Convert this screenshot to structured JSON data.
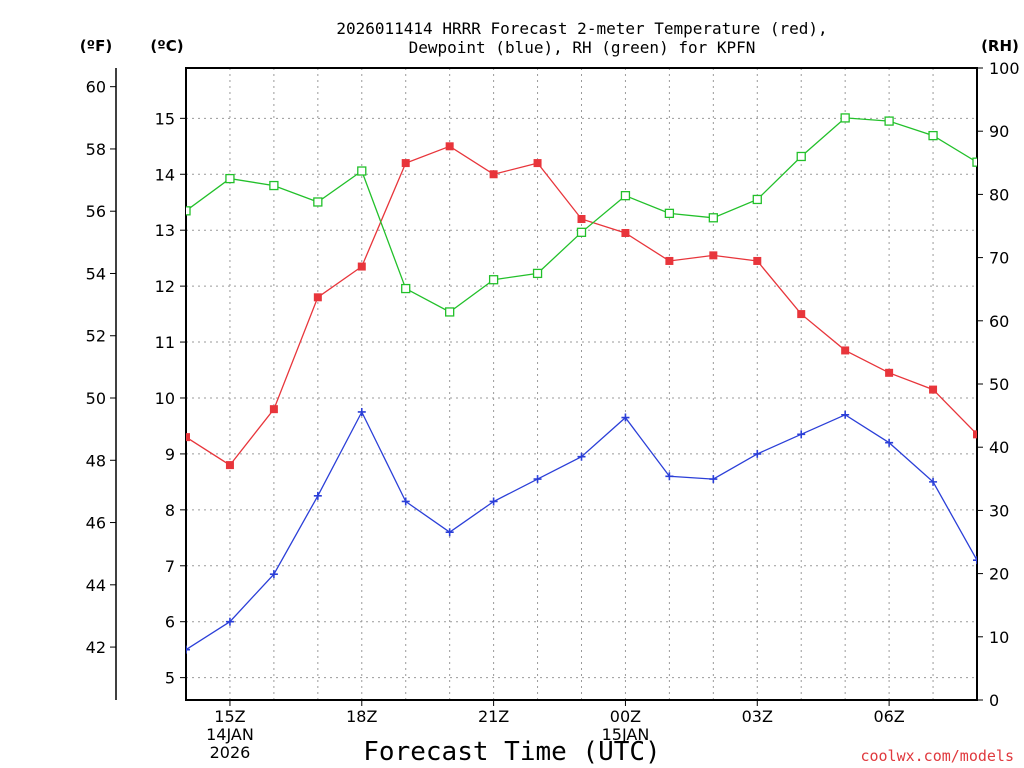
{
  "chart_data": {
    "type": "line",
    "title_line1": "2026011414 HRRR Forecast 2-meter Temperature (red),",
    "title_line2": "Dewpoint (blue), RH (green) for KPFN",
    "xlabel": "Forecast Time (UTC)",
    "credit": "coolwx.com/models",
    "units": {
      "fahrenheit": "(ºF)",
      "celsius": "(ºC)",
      "rh": "(RH)"
    },
    "x_hours": [
      14,
      15,
      16,
      17,
      18,
      19,
      20,
      21,
      22,
      23,
      24,
      25,
      26,
      27,
      28,
      29,
      30,
      31,
      32
    ],
    "xlim": [
      14,
      32
    ],
    "x_ticks": [
      {
        "hour": 15,
        "lines": [
          "15Z",
          "14JAN",
          "2026"
        ]
      },
      {
        "hour": 18,
        "lines": [
          "18Z"
        ]
      },
      {
        "hour": 21,
        "lines": [
          "21Z"
        ]
      },
      {
        "hour": 24,
        "lines": [
          "00Z",
          "15JAN"
        ]
      },
      {
        "hour": 27,
        "lines": [
          "03Z"
        ]
      },
      {
        "hour": 30,
        "lines": [
          "06Z"
        ]
      }
    ],
    "celsius_axis": {
      "range": [
        4.6,
        15.9
      ],
      "ticks": [
        "5",
        "6",
        "7",
        "8",
        "9",
        "10",
        "11",
        "12",
        "13",
        "14",
        "15"
      ]
    },
    "fahrenheit_axis": {
      "range": [
        40.3,
        60.6
      ],
      "ticks": [
        "42",
        "44",
        "46",
        "48",
        "50",
        "52",
        "54",
        "56",
        "58",
        "60"
      ]
    },
    "rh_axis": {
      "range": [
        0,
        100
      ],
      "ticks": [
        "0",
        "10",
        "20",
        "30",
        "40",
        "50",
        "60",
        "70",
        "80",
        "90",
        "100"
      ]
    },
    "series": [
      {
        "name": "Temperature",
        "axis": "celsius",
        "color": "#e8353b",
        "marker": "filled-square",
        "values": [
          9.3,
          8.8,
          9.8,
          11.8,
          12.35,
          14.2,
          14.5,
          14.0,
          14.2,
          13.2,
          12.95,
          12.45,
          12.55,
          12.45,
          11.5,
          10.85,
          10.45,
          10.15,
          9.35
        ]
      },
      {
        "name": "Dewpoint",
        "axis": "celsius",
        "color": "#2b3fd8",
        "marker": "plus",
        "values": [
          5.5,
          6.0,
          6.85,
          8.25,
          9.75,
          8.15,
          7.6,
          8.15,
          8.55,
          8.95,
          9.65,
          8.6,
          8.55,
          9.0,
          9.35,
          9.7,
          9.2,
          8.5,
          7.1
        ]
      },
      {
        "name": "RH",
        "axis": "rh",
        "color": "#22c02a",
        "marker": "open-square",
        "values": [
          77.4,
          82.5,
          81.4,
          78.8,
          83.7,
          65.1,
          61.4,
          66.5,
          67.5,
          74.0,
          79.8,
          77.0,
          76.3,
          79.2,
          86.0,
          92.1,
          91.6,
          89.3,
          85.1
        ]
      }
    ]
  }
}
